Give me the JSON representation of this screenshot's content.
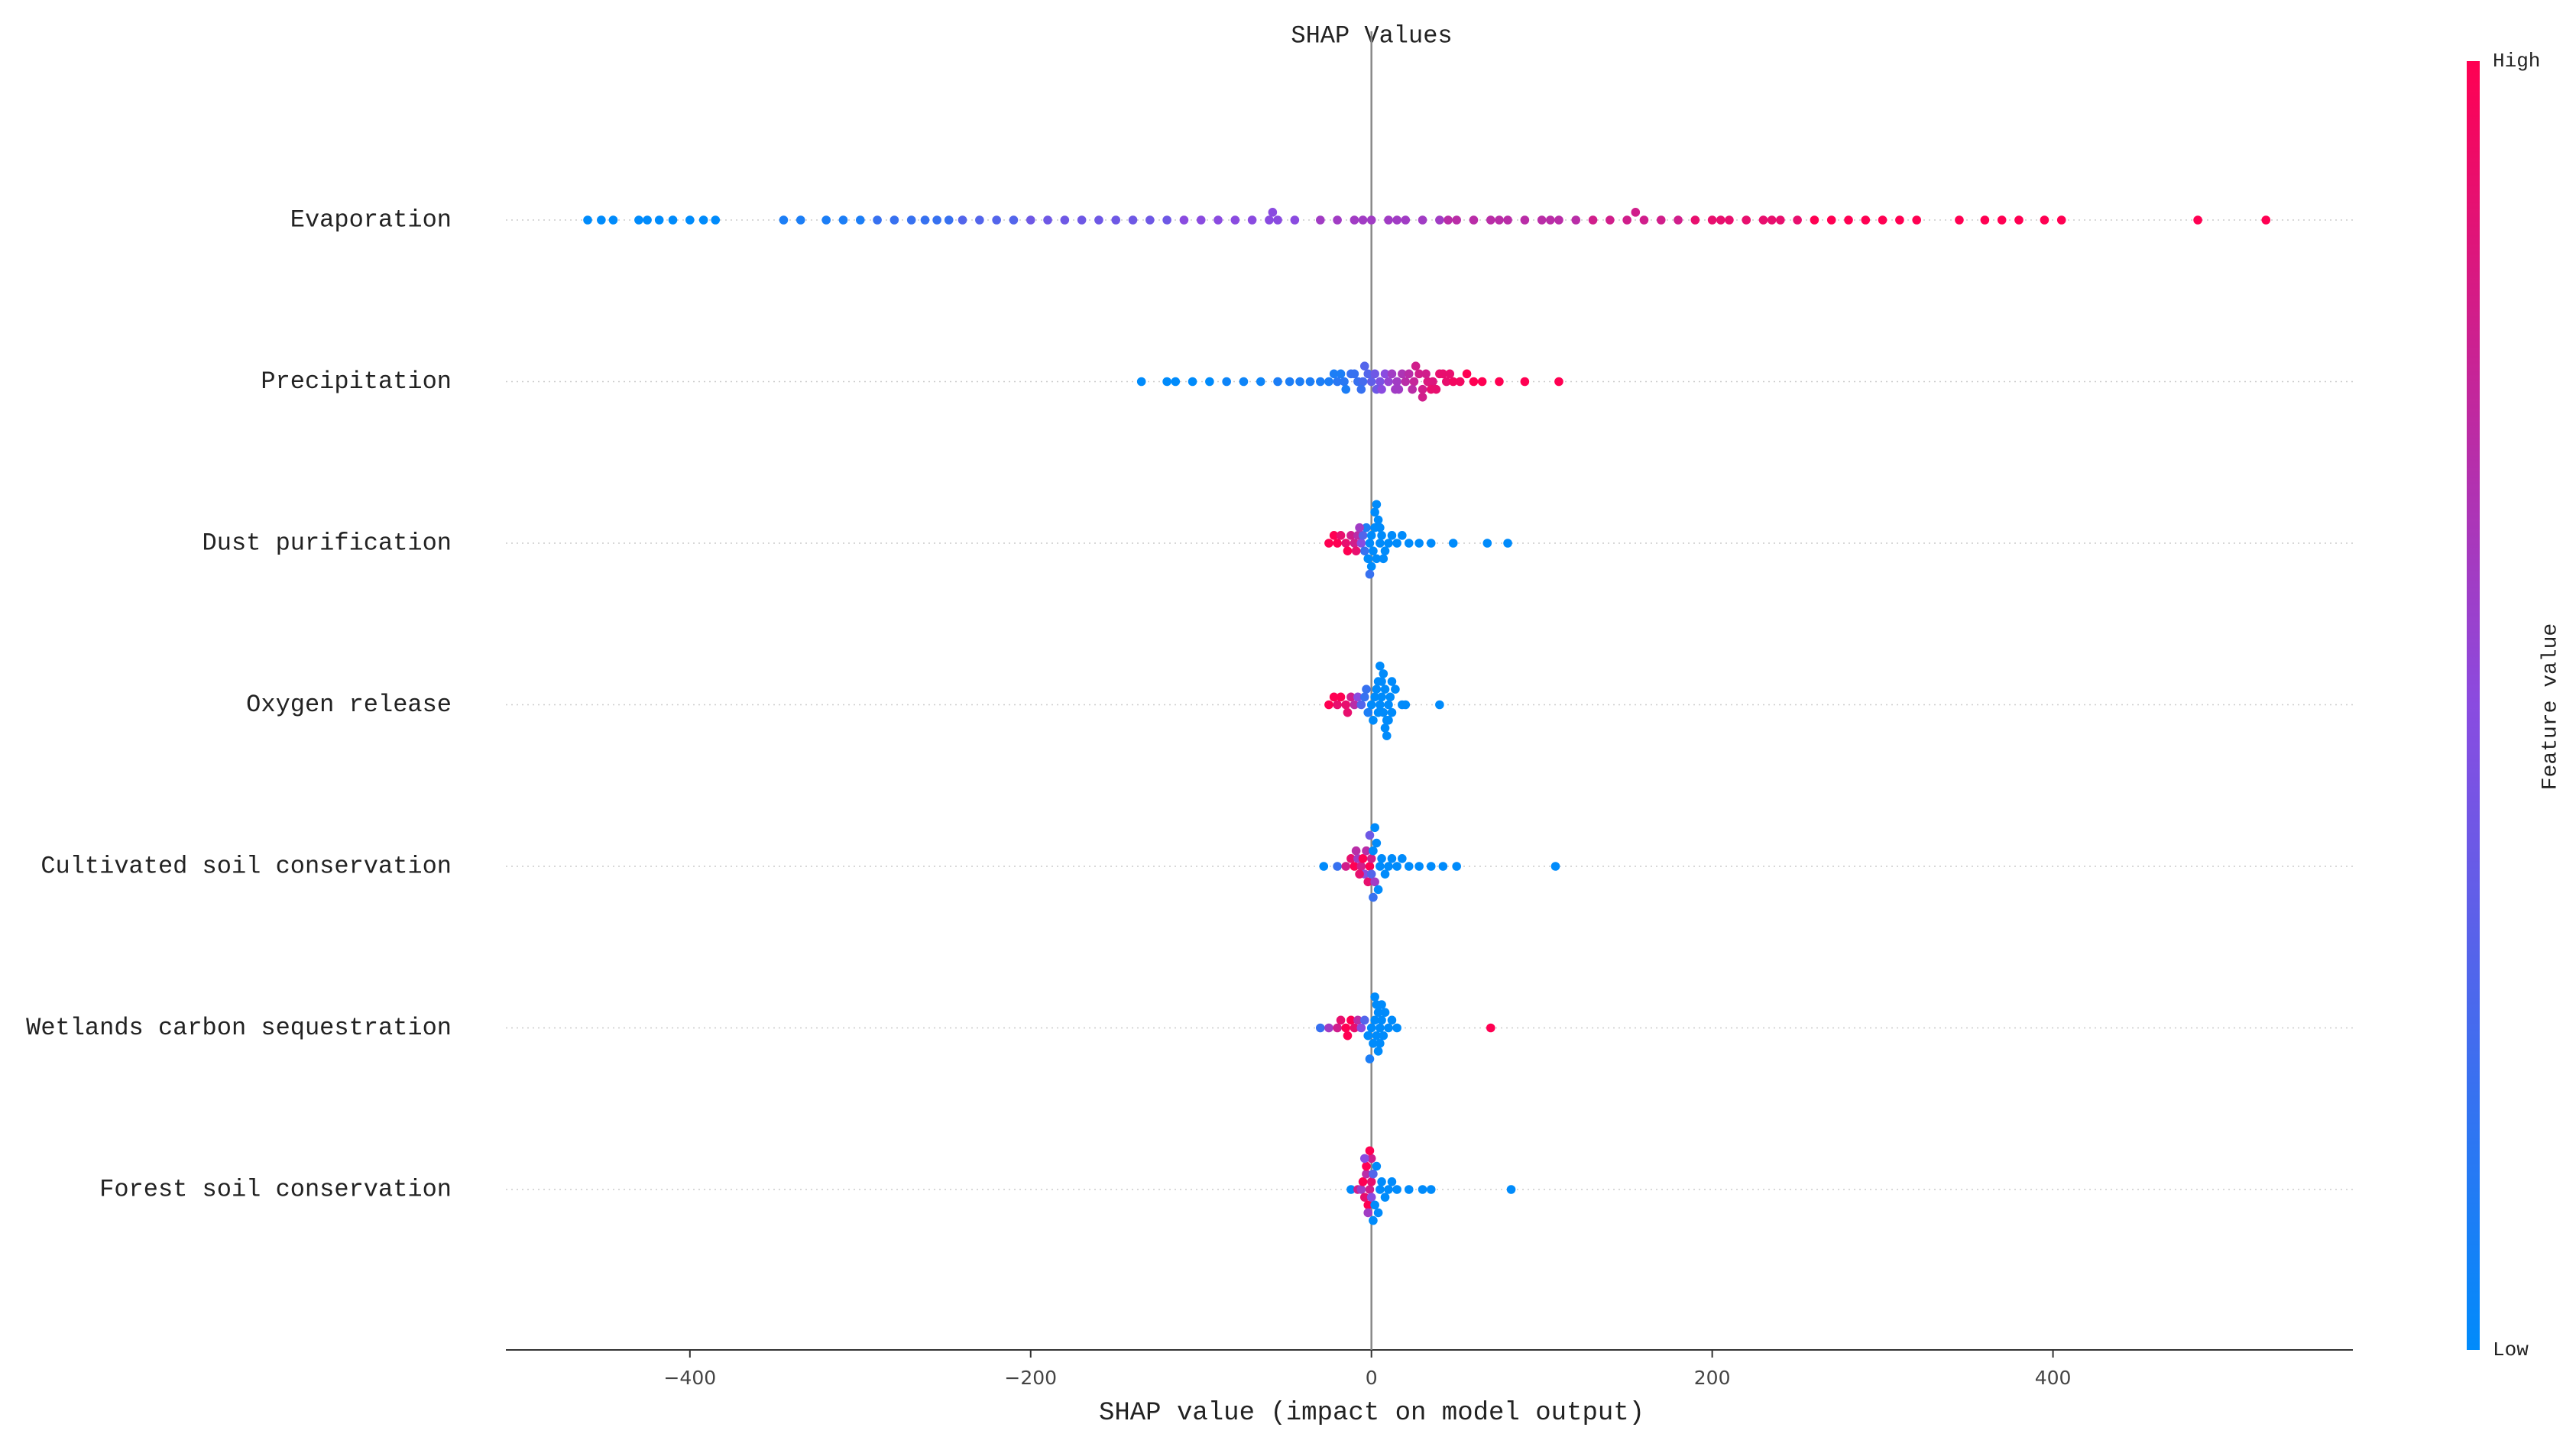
{
  "chart_data": {
    "type": "beeswarm",
    "title": "SHAP Values",
    "x_label": "SHAP value (impact on model output)",
    "xlim": [
      -508,
      576
    ],
    "xticks": [
      {
        "value": -400,
        "label": "−400"
      },
      {
        "value": -200,
        "label": "−200"
      },
      0,
      200,
      400
    ],
    "colorbar": {
      "label": "Feature value",
      "high": "High",
      "low": "Low"
    },
    "colormap": [
      "#008bfb",
      "#8a4be0",
      "#ff0052"
    ],
    "series": [
      {
        "name": "Evaporation",
        "values": [
          -460,
          -452,
          -445,
          -430,
          -425,
          -418,
          -410,
          -400,
          -392,
          -385,
          -345,
          -335,
          -320,
          -310,
          -300,
          -290,
          -280,
          -270,
          -262,
          -255,
          -248,
          -240,
          -230,
          -220,
          -210,
          -200,
          -190,
          -180,
          -170,
          -160,
          -150,
          -140,
          -130,
          -120,
          -110,
          -100,
          -90,
          -80,
          -70,
          -60,
          -55,
          -45,
          -30,
          -20,
          -10,
          0,
          10,
          20,
          30,
          40,
          50,
          60,
          70,
          80,
          90,
          100,
          110,
          120,
          130,
          140,
          150,
          160,
          170,
          180,
          190,
          200,
          210,
          220,
          230,
          240,
          250,
          260,
          270,
          280,
          290,
          300,
          310,
          320,
          345,
          360,
          370,
          380,
          395,
          405,
          485,
          525,
          -58,
          -5,
          15,
          45,
          75,
          105,
          155,
          205,
          235
        ],
        "feature_values": [
          0,
          0,
          0,
          0,
          0,
          0,
          0,
          0,
          0,
          0,
          0.1,
          0.1,
          0.1,
          0.1,
          0.1,
          0.2,
          0.2,
          0.2,
          0.2,
          0.2,
          0.2,
          0.3,
          0.3,
          0.3,
          0.3,
          0.4,
          0.4,
          0.4,
          0.4,
          0.4,
          0.4,
          0.4,
          0.4,
          0.4,
          0.5,
          0.5,
          0.5,
          0.5,
          0.5,
          0.5,
          0.5,
          0.5,
          0.6,
          0.6,
          0.6,
          0.6,
          0.6,
          0.6,
          0.6,
          0.6,
          0.7,
          0.7,
          0.7,
          0.7,
          0.7,
          0.7,
          0.7,
          0.7,
          0.8,
          0.8,
          0.8,
          0.8,
          0.8,
          0.8,
          0.9,
          0.9,
          0.9,
          0.9,
          0.9,
          0.9,
          0.9,
          1,
          1,
          1,
          1,
          1,
          1,
          1,
          1,
          1,
          1,
          1,
          1,
          1,
          1,
          1,
          0.5,
          0.6,
          0.6,
          0.7,
          0.7,
          0.7,
          0.8,
          0.9,
          0.9
        ]
      },
      {
        "name": "Precipitation",
        "values": [
          -135,
          -120,
          -115,
          -105,
          -95,
          -85,
          -75,
          -65,
          -55,
          -48,
          -42,
          -36,
          -30,
          -25,
          -20,
          -16,
          -12,
          -8,
          -5,
          -2,
          0,
          2,
          5,
          8,
          10,
          12,
          15,
          18,
          20,
          22,
          25,
          28,
          30,
          33,
          36,
          40,
          44,
          48,
          52,
          56,
          60,
          65,
          75,
          90,
          110,
          -10,
          -6,
          -4,
          3,
          6,
          14,
          16,
          24,
          26,
          32,
          38,
          42,
          46,
          30,
          35,
          -15,
          -22,
          -18
        ],
        "feature_values": [
          0,
          0,
          0,
          0,
          0,
          0.05,
          0.05,
          0.05,
          0.1,
          0.1,
          0.1,
          0.1,
          0.1,
          0.1,
          0.15,
          0.15,
          0.2,
          0.2,
          0.25,
          0.3,
          0.35,
          0.4,
          0.45,
          0.5,
          0.55,
          0.6,
          0.6,
          0.65,
          0.7,
          0.7,
          0.75,
          0.8,
          0.8,
          0.85,
          0.85,
          0.9,
          0.9,
          0.95,
          0.95,
          1,
          1,
          1,
          1,
          1,
          1,
          0.2,
          0.2,
          0.3,
          0.4,
          0.5,
          0.6,
          0.6,
          0.7,
          0.8,
          0.8,
          0.9,
          0.9,
          0.9,
          0.8,
          0.9,
          0.1,
          0.1,
          0.1
        ]
      },
      {
        "name": "Dust purification",
        "values": [
          -25,
          -22,
          -20,
          -18,
          -15,
          -12,
          -10,
          -8,
          -6,
          -5,
          -4,
          -3,
          -2,
          -1,
          0,
          1,
          2,
          3,
          4,
          5,
          6,
          8,
          10,
          12,
          15,
          18,
          22,
          28,
          35,
          48,
          68,
          80,
          0,
          2,
          -1,
          3,
          5,
          7,
          -14,
          -9,
          -7
        ],
        "feature_values": [
          1,
          1,
          1,
          0.9,
          0.9,
          0.8,
          0.8,
          0.7,
          0.5,
          0.3,
          0.2,
          0.1,
          0,
          0,
          0,
          0,
          0,
          0,
          0,
          0,
          0,
          0,
          0,
          0,
          0,
          0,
          0,
          0,
          0,
          0,
          0,
          0,
          0,
          0,
          0.2,
          0,
          0,
          0,
          1,
          0.9,
          0.6
        ]
      },
      {
        "name": "Oxygen release",
        "values": [
          -25,
          -22,
          -20,
          -18,
          -15,
          -12,
          -10,
          -8,
          -6,
          -4,
          -2,
          0,
          2,
          4,
          5,
          6,
          7,
          8,
          9,
          10,
          11,
          12,
          14,
          18,
          20,
          40,
          6,
          8,
          10,
          7,
          9,
          3,
          -3,
          -14,
          1,
          12,
          5,
          4
        ],
        "feature_values": [
          1,
          1,
          0.9,
          1,
          0.9,
          0.8,
          0.7,
          0.5,
          0.3,
          0.2,
          0.1,
          0,
          0,
          0,
          0,
          0,
          0,
          0,
          0,
          0,
          0,
          0,
          0,
          0,
          0,
          0,
          0,
          0,
          0,
          0,
          0,
          0,
          0.2,
          0.9,
          0,
          0,
          0,
          0
        ]
      },
      {
        "name": "Cultivated soil conservation",
        "values": [
          -28,
          -20,
          -15,
          -12,
          -10,
          -8,
          -6,
          -5,
          -4,
          -3,
          -2,
          -1,
          0,
          0,
          1,
          2,
          3,
          4,
          5,
          6,
          8,
          10,
          12,
          15,
          18,
          22,
          28,
          35,
          42,
          50,
          108,
          -1,
          1,
          2,
          -7,
          -9
        ],
        "feature_values": [
          0,
          0.2,
          0.8,
          0.9,
          1,
          0.6,
          0.8,
          1,
          0.5,
          0.7,
          0.9,
          1,
          0.8,
          0.3,
          0,
          0.6,
          0,
          0,
          0,
          0,
          0,
          0,
          0,
          0,
          0,
          0,
          0,
          0,
          0,
          0,
          0,
          0.4,
          0.2,
          0,
          0.9,
          0.7
        ]
      },
      {
        "name": "Wetlands carbon sequestration",
        "values": [
          -30,
          -25,
          -20,
          -18,
          -15,
          -12,
          -10,
          -8,
          -6,
          -4,
          -2,
          0,
          2,
          3,
          4,
          5,
          6,
          7,
          8,
          10,
          12,
          15,
          70,
          1,
          3,
          5,
          4,
          2,
          6,
          -14,
          -1
        ],
        "feature_values": [
          0.2,
          0.6,
          0.8,
          0.9,
          1,
          1,
          0.9,
          0.7,
          0.5,
          0.3,
          0,
          0,
          0,
          0,
          0,
          0,
          0,
          0,
          0,
          0,
          0,
          0,
          1,
          0,
          0,
          0,
          0,
          0,
          0,
          1,
          0.1
        ]
      },
      {
        "name": "Forest soil conservation",
        "values": [
          -12,
          -8,
          -6,
          -5,
          -4,
          -3,
          -2,
          -1,
          0,
          0,
          1,
          2,
          3,
          4,
          5,
          6,
          8,
          10,
          12,
          15,
          22,
          30,
          35,
          82,
          -3,
          -2,
          0,
          1,
          -1,
          -4
        ],
        "feature_values": [
          0,
          0.8,
          0.6,
          1,
          0.9,
          0.7,
          1,
          0.8,
          0.9,
          0.5,
          0.3,
          0,
          0,
          0,
          0,
          0,
          0,
          0,
          0,
          0,
          0,
          0,
          0,
          0,
          1,
          0.6,
          0.8,
          0,
          1,
          0.5
        ]
      }
    ]
  }
}
